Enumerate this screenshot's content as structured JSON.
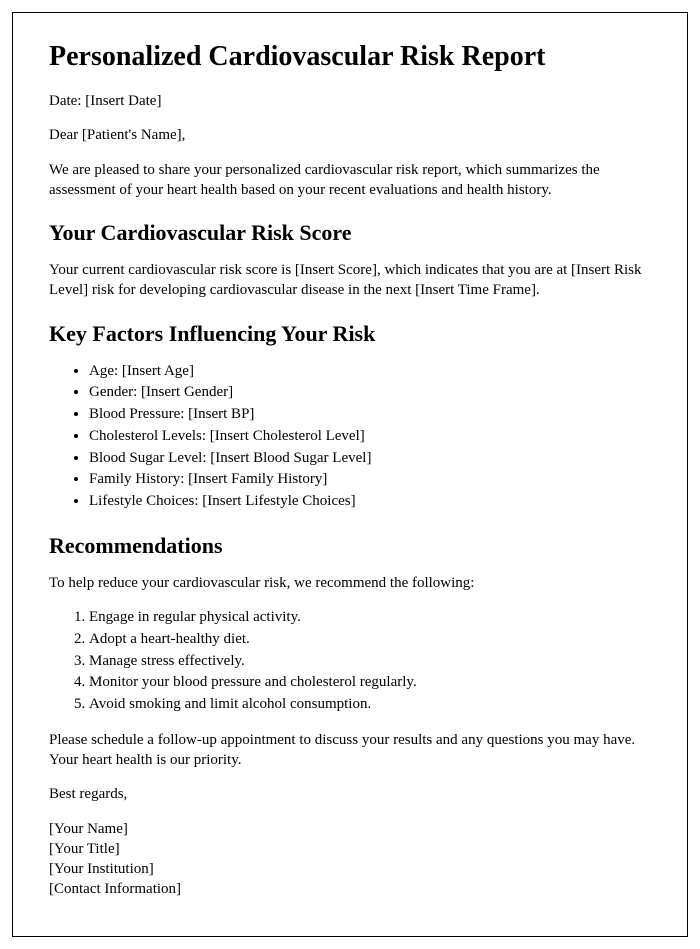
{
  "doc": {
    "title": "Personalized Cardiovascular Risk Report",
    "date_line": "Date: [Insert Date]",
    "salutation": "Dear [Patient's Name],",
    "intro": "We are pleased to share your personalized cardiovascular risk report, which summarizes the assessment of your heart health based on your recent evaluations and health history.",
    "score_heading": "Your Cardiovascular Risk Score",
    "score_paragraph": "Your current cardiovascular risk score is [Insert Score], which indicates that you are at [Insert Risk Level] risk for developing cardiovascular disease in the next [Insert Time Frame].",
    "factors_heading": "Key Factors Influencing Your Risk",
    "factors": [
      "Age: [Insert Age]",
      "Gender: [Insert Gender]",
      "Blood Pressure: [Insert BP]",
      "Cholesterol Levels: [Insert Cholesterol Level]",
      "Blood Sugar Level: [Insert Blood Sugar Level]",
      "Family History: [Insert Family History]",
      "Lifestyle Choices: [Insert Lifestyle Choices]"
    ],
    "recs_heading": "Recommendations",
    "recs_intro": "To help reduce your cardiovascular risk, we recommend the following:",
    "recs": [
      "Engage in regular physical activity.",
      "Adopt a heart-healthy diet.",
      "Manage stress effectively.",
      "Monitor your blood pressure and cholesterol regularly.",
      "Avoid smoking and limit alcohol consumption."
    ],
    "followup": "Please schedule a follow-up appointment to discuss your results and any questions you may have. Your heart health is our priority.",
    "closing": "Best regards,",
    "sig_name": "[Your Name]",
    "sig_title": "[Your Title]",
    "sig_institution": "[Your Institution]",
    "sig_contact": "[Contact Information]"
  },
  "style": {
    "page_border_color": "#000000",
    "background_color": "#ffffff",
    "text_color": "#000000",
    "font_family": "Times New Roman",
    "h1_fontsize": 28,
    "h2_fontsize": 22,
    "body_fontsize": 15
  }
}
